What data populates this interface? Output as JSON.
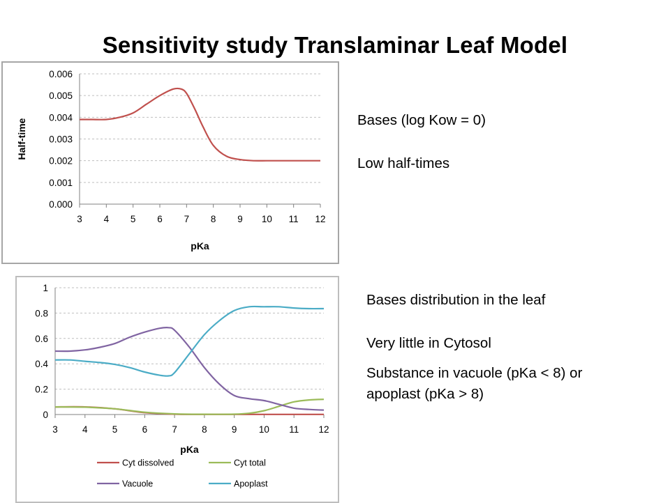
{
  "slide": {
    "title": "Sensitivity study Translaminar Leaf Model",
    "text1_line1": "Bases  (log Kow = 0)",
    "text1_line2": "Low half-times",
    "text2_line1": "Bases distribution in the leaf",
    "text2_line2": "Very little in Cytosol",
    "text2_line3a": "Substance in vacuole (pKa < 8) or",
    "text2_line3b": "apoplast (pKa > 8)"
  },
  "chart_data": [
    {
      "type": "line",
      "title": "",
      "xlabel": "pKa",
      "ylabel": "Half-time",
      "xlim": [
        3,
        12
      ],
      "ylim": [
        0,
        0.006
      ],
      "x_ticks": [
        "3",
        "4",
        "5",
        "6",
        "7",
        "8",
        "9",
        "10",
        "11",
        "12"
      ],
      "y_ticks": [
        "0.000",
        "0.001",
        "0.002",
        "0.003",
        "0.004",
        "0.005",
        "0.006"
      ],
      "grid": true,
      "series": [
        {
          "color": "#c0504d",
          "x": [
            3,
            3.5,
            4,
            4.5,
            5,
            5.5,
            6,
            6.5,
            6.8,
            7,
            7.3,
            7.6,
            8,
            8.5,
            9,
            9.5,
            10,
            10.5,
            11,
            11.5,
            12
          ],
          "y": [
            0.0039,
            0.0039,
            0.0039,
            0.004,
            0.0042,
            0.0046,
            0.005,
            0.0053,
            0.0053,
            0.0051,
            0.0044,
            0.0036,
            0.0027,
            0.0022,
            0.00205,
            0.002,
            0.002,
            0.002,
            0.002,
            0.002,
            0.002
          ]
        }
      ]
    },
    {
      "type": "line",
      "title": "",
      "xlabel": "pKa",
      "ylabel": "",
      "xlim": [
        3,
        12
      ],
      "ylim": [
        0,
        1
      ],
      "x_ticks": [
        "3",
        "4",
        "5",
        "6",
        "7",
        "8",
        "9",
        "10",
        "11",
        "12"
      ],
      "y_ticks": [
        "0",
        "0.2",
        "0.4",
        "0.6",
        "0.8",
        "1"
      ],
      "grid": true,
      "legend_position": "bottom",
      "series": [
        {
          "name": "Cyt dissolved",
          "color": "#c0504d",
          "x": [
            3,
            4,
            5,
            6,
            7,
            8,
            9,
            10,
            11,
            12
          ],
          "y": [
            0.06,
            0.06,
            0.045,
            0.015,
            0.003,
            0.001,
            0.001,
            0.001,
            0.001,
            0.001
          ]
        },
        {
          "name": "Cyt total",
          "color": "#9bbb59",
          "x": [
            3,
            4,
            5,
            6,
            7,
            8,
            9,
            9.5,
            10,
            10.5,
            11,
            11.5,
            12
          ],
          "y": [
            0.06,
            0.058,
            0.045,
            0.018,
            0.005,
            0.002,
            0.003,
            0.01,
            0.03,
            0.065,
            0.1,
            0.115,
            0.12
          ]
        },
        {
          "name": "Vacuole",
          "color": "#8064a2",
          "x": [
            3,
            3.5,
            4,
            4.5,
            5,
            5.5,
            6,
            6.5,
            6.8,
            7,
            7.5,
            8,
            8.5,
            9,
            9.5,
            10,
            10.5,
            11,
            11.5,
            12
          ],
          "y": [
            0.5,
            0.5,
            0.51,
            0.53,
            0.56,
            0.61,
            0.65,
            0.68,
            0.685,
            0.665,
            0.53,
            0.37,
            0.24,
            0.15,
            0.125,
            0.11,
            0.08,
            0.05,
            0.04,
            0.035
          ]
        },
        {
          "name": "Apoplast",
          "color": "#4bacc6",
          "x": [
            3,
            3.5,
            4,
            4.5,
            5,
            5.5,
            6,
            6.5,
            6.8,
            7,
            7.5,
            8,
            8.5,
            9,
            9.5,
            10,
            10.5,
            11,
            11.5,
            12
          ],
          "y": [
            0.43,
            0.43,
            0.42,
            0.41,
            0.395,
            0.37,
            0.335,
            0.31,
            0.305,
            0.33,
            0.48,
            0.63,
            0.74,
            0.82,
            0.85,
            0.85,
            0.85,
            0.84,
            0.835,
            0.835
          ]
        }
      ]
    }
  ]
}
